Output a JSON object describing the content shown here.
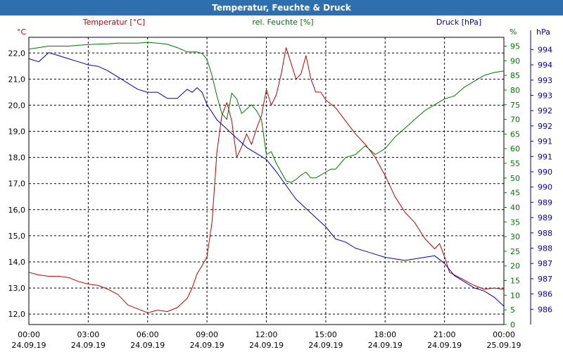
{
  "window": {
    "title": "Temperatur, Feuchte & Druck"
  },
  "colors": {
    "temperature": "#c00000",
    "humidity": "#007800",
    "pressure": "#0000b4",
    "grid": "#000000",
    "titlebar": "#2e6fb0"
  },
  "chart_data": {
    "type": "line",
    "title": "Temperatur, Feuchte & Druck",
    "grid": true,
    "x_ticks": [
      {
        "time": "00:00",
        "date": "24.09.19"
      },
      {
        "time": "03:00",
        "date": "24.09.19"
      },
      {
        "time": "06:00",
        "date": "24.09.19"
      },
      {
        "time": "09:00",
        "date": "24.09.19"
      },
      {
        "time": "12:00",
        "date": "24.09.19"
      },
      {
        "time": "15:00",
        "date": "24.09.19"
      },
      {
        "time": "18:00",
        "date": "24.09.19"
      },
      {
        "time": "21:00",
        "date": "24.09.19"
      },
      {
        "time": "00:00",
        "date": "25.09.19"
      }
    ],
    "xlim_hours": [
      0,
      24
    ],
    "axes": {
      "temperature": {
        "unit": "°C",
        "label": "Temperatur [°C]",
        "ylim": [
          11.6,
          22.6
        ],
        "ticks": [
          "12,0",
          "13,0",
          "14,0",
          "15,0",
          "16,0",
          "17,0",
          "18,0",
          "19,0",
          "20,0",
          "21,0",
          "22,0"
        ],
        "tick_values": [
          12,
          13,
          14,
          15,
          16,
          17,
          18,
          19,
          20,
          21,
          22
        ]
      },
      "humidity": {
        "unit": "%",
        "label": "rel. Feuchte [%]",
        "ylim": [
          0,
          98
        ],
        "ticks": [
          "0",
          "5",
          "10",
          "15",
          "20",
          "25",
          "30",
          "35",
          "40",
          "45",
          "50",
          "55",
          "60",
          "65",
          "70",
          "75",
          "80",
          "85",
          "90",
          "95"
        ],
        "tick_values": [
          0,
          5,
          10,
          15,
          20,
          25,
          30,
          35,
          40,
          45,
          50,
          55,
          60,
          65,
          70,
          75,
          80,
          85,
          90,
          95
        ]
      },
      "pressure": {
        "unit": "hPa",
        "label": "Druck [hPa]",
        "ylim": [
          985.4,
          994.8
        ],
        "ticks": [
          "986",
          "986",
          "987",
          "987",
          "988",
          "988",
          "989",
          "989",
          "990",
          "990",
          "991",
          "991",
          "992",
          "992",
          "993",
          "993",
          "994",
          "994"
        ],
        "tick_values": [
          985.9,
          986.4,
          986.9,
          987.4,
          987.9,
          988.4,
          988.9,
          989.4,
          989.9,
          990.4,
          990.9,
          991.4,
          991.9,
          992.4,
          992.9,
          993.4,
          993.9,
          994.4
        ]
      }
    },
    "series": [
      {
        "name": "Temperatur [°C]",
        "axis": "temperature",
        "color": "#c00000",
        "x": [
          0,
          0.5,
          1,
          1.5,
          2,
          2.5,
          3,
          3.5,
          4,
          4.5,
          5,
          5.5,
          6,
          6.5,
          7,
          7.5,
          8,
          8.25,
          8.5,
          8.75,
          9,
          9.25,
          9.5,
          9.75,
          10,
          10.25,
          10.5,
          10.75,
          11,
          11.25,
          11.5,
          11.75,
          12,
          12.25,
          12.5,
          12.75,
          13,
          13.25,
          13.5,
          13.75,
          14,
          14.25,
          14.5,
          14.75,
          15,
          15.5,
          16,
          16.5,
          17,
          17.5,
          18,
          18.5,
          19,
          19.5,
          20,
          20.5,
          20.75,
          21,
          21.25,
          21.5,
          22,
          22.5,
          23,
          23.5,
          24
        ],
        "y": [
          13.6,
          13.5,
          13.45,
          13.45,
          13.4,
          13.25,
          13.15,
          13.1,
          12.95,
          12.75,
          12.35,
          12.2,
          12.05,
          12.15,
          12.1,
          12.25,
          12.6,
          13.0,
          13.55,
          13.85,
          14.2,
          15.5,
          18.2,
          19.6,
          20.1,
          19.4,
          18.0,
          18.4,
          18.9,
          18.5,
          19.1,
          19.6,
          20.6,
          20.0,
          20.4,
          21.2,
          22.2,
          21.6,
          21.0,
          21.2,
          21.9,
          21.0,
          20.5,
          20.5,
          20.2,
          19.9,
          19.4,
          18.9,
          18.5,
          18.0,
          17.3,
          16.5,
          15.9,
          15.5,
          14.9,
          14.5,
          14.7,
          14.2,
          13.6,
          13.5,
          13.3,
          13.1,
          12.95,
          13.0,
          12.95
        ]
      },
      {
        "name": "rel. Feuchte [%]",
        "axis": "humidity",
        "color": "#007800",
        "x": [
          0,
          0.5,
          1,
          1.5,
          2,
          2.5,
          3,
          3.5,
          4,
          4.5,
          5,
          5.5,
          6,
          6.5,
          7,
          7.5,
          8,
          8.25,
          8.5,
          8.75,
          9,
          9.25,
          9.5,
          9.75,
          10,
          10.25,
          10.5,
          10.75,
          11,
          11.25,
          11.5,
          11.75,
          12,
          12.25,
          12.5,
          12.75,
          13,
          13.25,
          13.5,
          13.75,
          14,
          14.25,
          14.5,
          14.75,
          15,
          15.25,
          15.5,
          15.75,
          16,
          16.5,
          17,
          17.5,
          18,
          18.5,
          19,
          19.5,
          20,
          20.5,
          21,
          21.5,
          22,
          22.5,
          23,
          23.5,
          24
        ],
        "y": [
          94,
          94.5,
          95,
          95,
          95,
          95.3,
          95.5,
          95.7,
          95.8,
          96,
          96,
          96,
          96.3,
          96,
          95.6,
          94.5,
          93,
          93,
          93,
          92.5,
          90.5,
          85,
          78,
          72,
          70,
          79,
          77,
          72,
          73.5,
          75,
          73,
          70,
          58,
          59,
          55,
          52,
          49,
          48.5,
          49.5,
          51,
          52,
          50,
          50,
          51,
          52,
          53,
          53,
          55,
          57,
          58,
          61,
          58,
          60,
          64,
          67,
          70,
          73,
          75,
          77,
          78,
          81,
          83,
          85,
          86,
          86.5
        ]
      },
      {
        "name": "Druck [hPa]",
        "axis": "pressure",
        "color": "#0000b4",
        "x": [
          0,
          0.5,
          1,
          1.5,
          2,
          2.5,
          3,
          3.5,
          4,
          4.5,
          5,
          5.5,
          6,
          6.5,
          7,
          7.5,
          8,
          8.25,
          8.5,
          8.75,
          9,
          9.5,
          10,
          10.5,
          11,
          11.5,
          12,
          12.5,
          13,
          13.5,
          14,
          14.5,
          15,
          15.5,
          16,
          16.5,
          17,
          17.5,
          18,
          18.5,
          19,
          19.5,
          20,
          20.5,
          21,
          21.5,
          22,
          22.5,
          23,
          23.5,
          24
        ],
        "y": [
          994.1,
          994.0,
          994.3,
          994.2,
          994.1,
          994.0,
          993.9,
          993.85,
          993.7,
          993.5,
          993.3,
          993.1,
          993.0,
          993.0,
          992.8,
          992.8,
          993.1,
          993.0,
          993.15,
          993.0,
          992.6,
          992.1,
          991.8,
          991.5,
          991.2,
          991.0,
          990.8,
          990.4,
          989.95,
          989.5,
          989.2,
          988.9,
          988.6,
          988.2,
          988.1,
          987.9,
          987.8,
          987.7,
          987.6,
          987.55,
          987.5,
          987.55,
          987.6,
          987.65,
          987.4,
          987.0,
          986.8,
          986.6,
          986.5,
          986.3,
          986.0
        ]
      }
    ]
  }
}
